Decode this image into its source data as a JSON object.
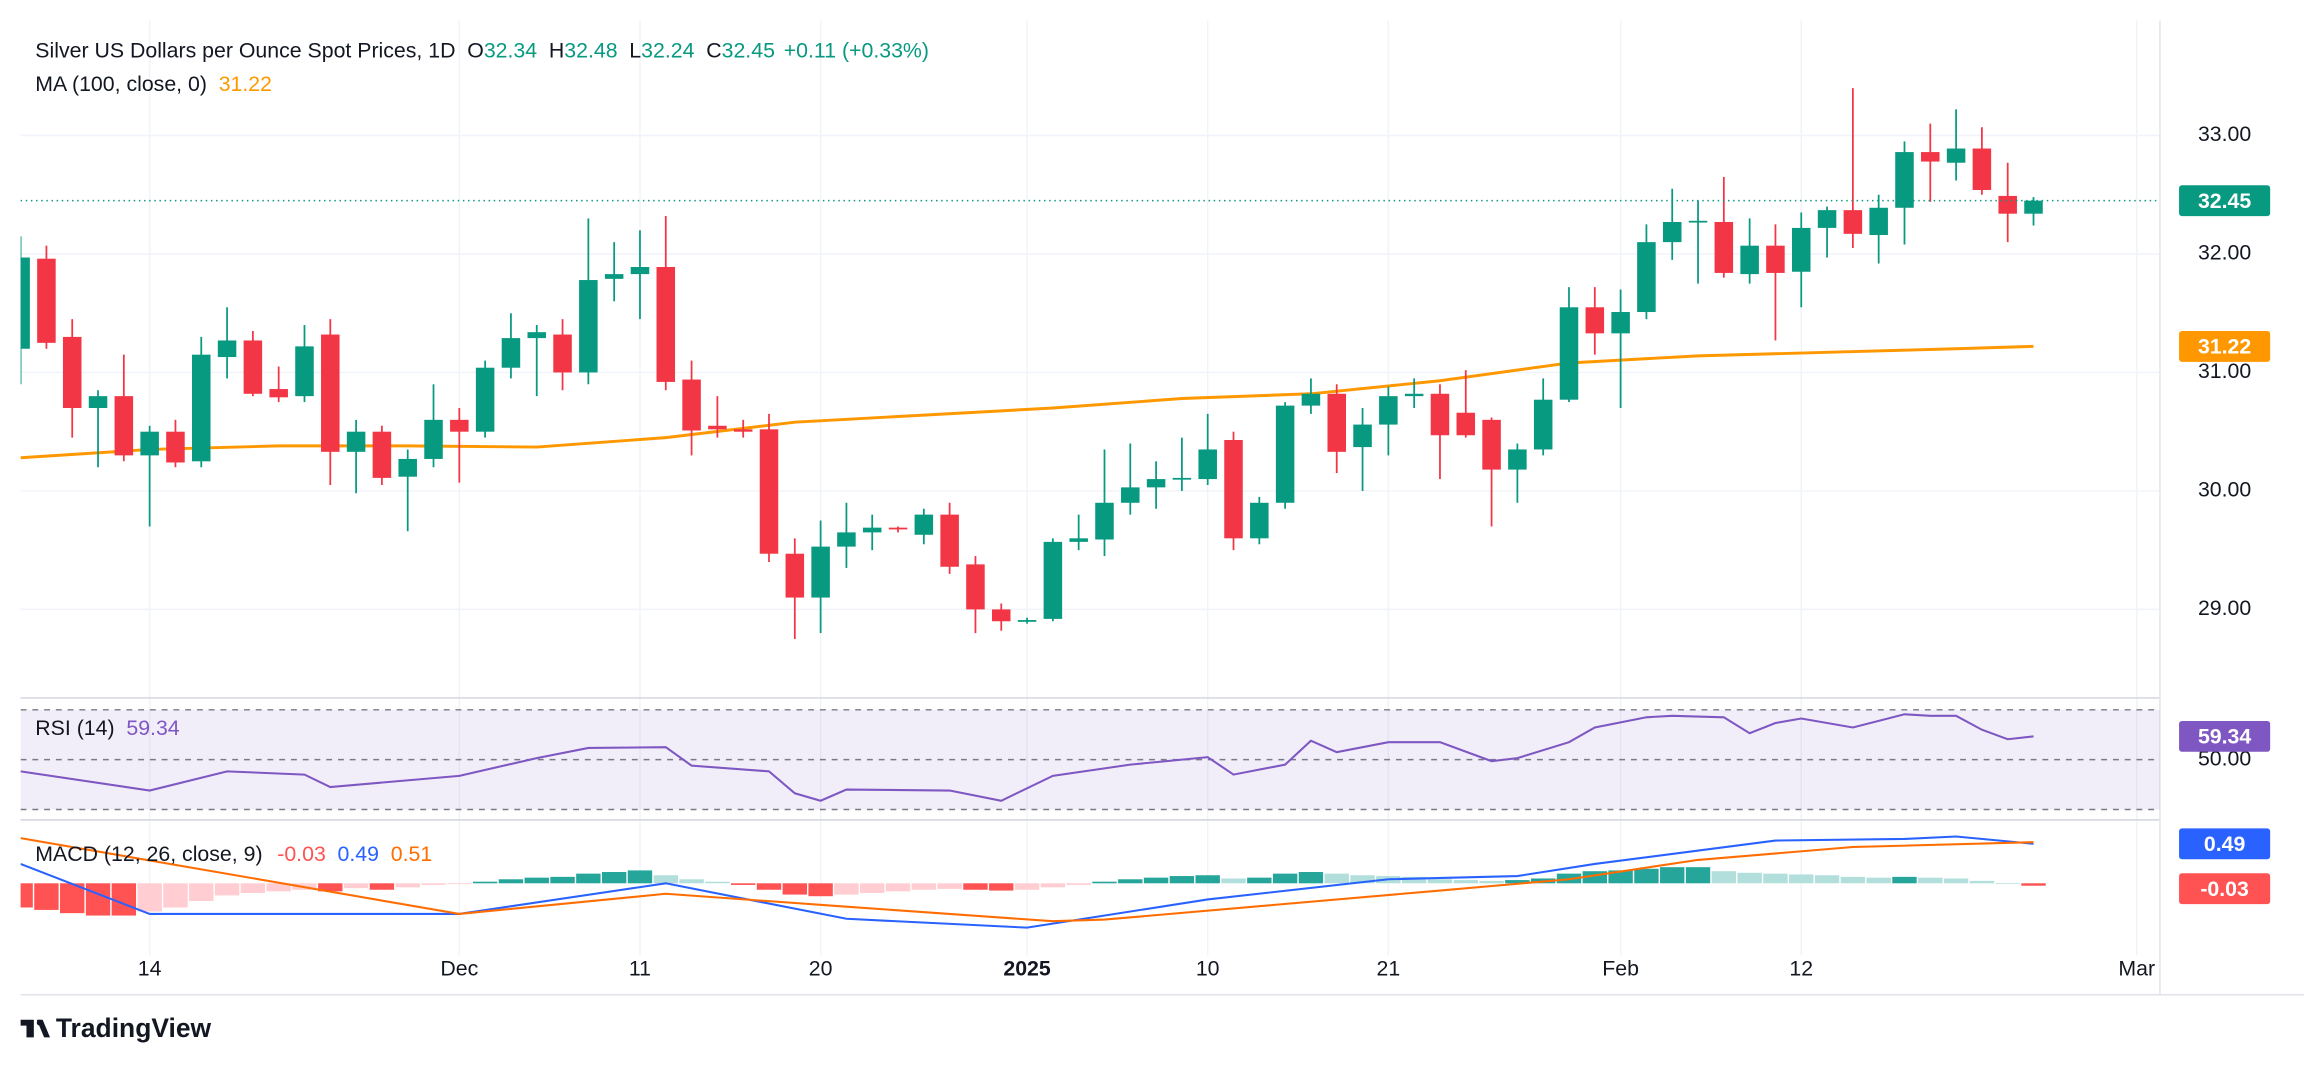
{
  "chart_data": [
    {
      "type": "candlestick",
      "title": "Silver US Dollars per Ounce Spot Prices, 1D",
      "ohlc_labels": [
        "O",
        "H",
        "L",
        "C"
      ],
      "change": "+0.11 (+0.33%)",
      "up_color": "#089981",
      "down_color": "#f23645",
      "xlim": [
        0,
        82.9
      ],
      "xticks": [
        {
          "value": 5,
          "label": "14"
        },
        {
          "value": 17,
          "label": "Dec"
        },
        {
          "value": 24,
          "label": "11"
        },
        {
          "value": 31,
          "label": "20"
        },
        {
          "value": 39,
          "label": "2025"
        },
        {
          "value": 46,
          "label": "10"
        },
        {
          "value": 53,
          "label": "21"
        },
        {
          "value": 62,
          "label": "Feb"
        },
        {
          "value": 69,
          "label": "12"
        },
        {
          "value": 82,
          "label": "Mar"
        }
      ],
      "ylim": [
        28.29,
        33.97
      ],
      "yticks": [
        {
          "value": 29,
          "label": "29.00"
        },
        {
          "value": 30,
          "label": "30.00"
        },
        {
          "value": 31,
          "label": "31.00"
        },
        {
          "value": 32,
          "label": "32.00"
        },
        {
          "value": 33,
          "label": "33.00"
        }
      ],
      "grid": true,
      "candles": {
        "open": [
          31.2,
          31.96,
          31.3,
          30.7,
          30.8,
          30.3,
          30.5,
          30.25,
          31.13,
          31.27,
          30.86,
          30.8,
          31.32,
          30.33,
          30.5,
          30.12,
          30.27,
          30.6,
          30.5,
          31.04,
          31.29,
          31.32,
          31.0,
          31.79,
          31.83,
          31.89,
          30.94,
          30.55,
          30.52,
          30.52,
          29.47,
          29.1,
          29.53,
          29.65,
          29.69,
          29.63,
          29.8,
          29.38,
          29.0,
          28.9,
          28.92,
          29.57,
          29.59,
          29.9,
          30.03,
          30.1,
          30.1,
          30.43,
          29.6,
          29.9,
          30.72,
          30.82,
          30.37,
          30.56,
          30.8,
          30.82,
          30.66,
          30.6,
          30.18,
          30.35,
          30.77,
          31.55,
          31.33,
          31.51,
          32.1,
          32.27,
          32.27,
          31.83,
          32.07,
          31.85,
          32.22,
          32.37,
          32.16,
          32.39,
          32.86,
          32.77,
          32.89,
          32.49,
          32.34
        ],
        "high": [
          32.15,
          32.07,
          31.45,
          30.85,
          31.15,
          30.55,
          30.6,
          31.3,
          31.55,
          31.35,
          31.05,
          31.4,
          31.45,
          30.6,
          30.55,
          30.35,
          30.9,
          30.7,
          31.1,
          31.5,
          31.4,
          31.45,
          32.3,
          32.1,
          32.2,
          32.32,
          31.1,
          30.8,
          30.6,
          30.65,
          29.6,
          29.75,
          29.9,
          29.8,
          29.7,
          29.85,
          29.9,
          29.45,
          29.05,
          28.93,
          29.6,
          29.8,
          30.35,
          30.4,
          30.25,
          30.45,
          30.65,
          30.5,
          29.95,
          30.75,
          30.95,
          30.9,
          30.7,
          30.88,
          30.95,
          30.9,
          31.02,
          30.62,
          30.4,
          30.95,
          31.72,
          31.72,
          31.7,
          32.25,
          32.55,
          32.45,
          32.65,
          32.3,
          32.25,
          32.35,
          32.4,
          33.4,
          32.5,
          32.95,
          33.1,
          33.22,
          33.07,
          32.77,
          32.48
        ],
        "low": [
          30.9,
          31.2,
          30.45,
          30.2,
          30.25,
          29.7,
          30.2,
          30.2,
          30.95,
          30.8,
          30.75,
          30.75,
          30.05,
          29.98,
          30.05,
          29.66,
          30.2,
          30.07,
          30.45,
          30.95,
          30.8,
          30.85,
          30.9,
          31.6,
          31.45,
          30.85,
          30.3,
          30.45,
          30.45,
          29.4,
          28.75,
          28.8,
          29.35,
          29.5,
          29.65,
          29.55,
          29.3,
          28.8,
          28.82,
          28.88,
          28.9,
          29.5,
          29.45,
          29.8,
          29.85,
          30.0,
          30.05,
          29.5,
          29.55,
          29.85,
          30.65,
          30.15,
          30.0,
          30.3,
          30.7,
          30.1,
          30.45,
          29.7,
          29.9,
          30.3,
          30.75,
          31.15,
          30.7,
          31.45,
          31.95,
          31.75,
          31.8,
          31.75,
          31.27,
          31.55,
          31.97,
          32.05,
          31.92,
          32.08,
          32.44,
          32.62,
          32.5,
          32.1,
          32.24
        ],
        "close": [
          31.97,
          31.25,
          30.7,
          30.8,
          30.3,
          30.5,
          30.24,
          31.15,
          31.27,
          30.82,
          30.79,
          31.22,
          30.33,
          30.5,
          30.11,
          30.27,
          30.6,
          30.5,
          31.04,
          31.29,
          31.34,
          31.0,
          31.78,
          31.83,
          31.89,
          30.92,
          30.51,
          30.52,
          30.5,
          29.47,
          29.1,
          29.53,
          29.65,
          29.69,
          29.68,
          29.8,
          29.36,
          29.0,
          28.9,
          28.91,
          29.57,
          29.6,
          29.9,
          30.03,
          30.1,
          30.11,
          30.35,
          29.6,
          29.9,
          30.72,
          30.82,
          30.33,
          30.56,
          30.8,
          30.82,
          30.47,
          30.47,
          30.18,
          30.35,
          30.77,
          31.55,
          31.33,
          31.51,
          32.1,
          32.27,
          32.28,
          31.84,
          32.07,
          31.84,
          32.22,
          32.37,
          32.17,
          32.39,
          32.86,
          32.78,
          32.89,
          32.54,
          32.34,
          32.45
        ]
      },
      "ma": {
        "name": "MA (100, close, 0)",
        "color": "#ff9800",
        "x": [
          0,
          5,
          10,
          15,
          20,
          25,
          30,
          35,
          40,
          45,
          50,
          55,
          60,
          65,
          70,
          75,
          78
        ],
        "values": [
          30.28,
          30.35,
          30.38,
          30.38,
          30.37,
          30.45,
          30.58,
          30.64,
          30.7,
          30.78,
          30.82,
          30.93,
          31.08,
          31.14,
          31.17,
          31.2,
          31.22
        ]
      }
    },
    {
      "type": "line",
      "name": "RSI (14)",
      "color": "#7e57c2",
      "ylim": [
        27,
        73
      ],
      "levels": [
        70,
        50,
        30
      ],
      "yticks": [
        {
          "value": 50,
          "label": "50.00"
        }
      ],
      "x": [
        0,
        5,
        8,
        11,
        12,
        17,
        20,
        22,
        25,
        26,
        29,
        30,
        31,
        32,
        36,
        38,
        40,
        43,
        46,
        47,
        49,
        50,
        51,
        53,
        55,
        57,
        58,
        60,
        61,
        63,
        64,
        66,
        67,
        68,
        69,
        71,
        73,
        74,
        75,
        76,
        77,
        78
      ],
      "values": [
        45.3,
        37.6,
        45.3,
        44,
        39,
        43.5,
        50.6,
        54.7,
        55,
        47.6,
        45.3,
        36.5,
        33.5,
        38,
        37.6,
        33.5,
        43.5,
        48,
        51,
        44,
        48,
        57.6,
        53,
        57,
        57,
        49.4,
        50.6,
        57,
        62.9,
        67,
        67.6,
        67,
        60.6,
        64.7,
        66.5,
        62.9,
        68.2,
        67.6,
        67.6,
        62,
        58.2,
        59.34
      ]
    },
    {
      "type": "macd",
      "name": "MACD (12, 26, close, 9)",
      "ylim": [
        -0.89,
        0.75
      ],
      "histogram": {
        "colors": [
          "#26a69a",
          "#b2dfdb",
          "#ff5252",
          "#ffcdd2"
        ],
        "values": [
          -0.3,
          -0.33,
          -0.37,
          -0.4,
          -0.4,
          -0.35,
          -0.3,
          -0.22,
          -0.15,
          -0.12,
          -0.1,
          -0.08,
          -0.1,
          -0.06,
          -0.08,
          -0.05,
          -0.02,
          -0.01,
          0.02,
          0.05,
          0.07,
          0.08,
          0.12,
          0.14,
          0.16,
          0.1,
          0.05,
          0.02,
          -0.02,
          -0.08,
          -0.14,
          -0.16,
          -0.14,
          -0.12,
          -0.1,
          -0.08,
          -0.07,
          -0.08,
          -0.09,
          -0.08,
          -0.05,
          -0.02,
          0.02,
          0.05,
          0.07,
          0.09,
          0.1,
          0.06,
          0.07,
          0.12,
          0.14,
          0.12,
          0.1,
          0.09,
          0.08,
          0.05,
          0.04,
          0.03,
          0.04,
          0.06,
          0.12,
          0.15,
          0.16,
          0.18,
          0.2,
          0.2,
          0.15,
          0.13,
          0.12,
          0.11,
          0.1,
          0.08,
          0.07,
          0.08,
          0.07,
          0.06,
          0.03,
          0.0,
          -0.03
        ]
      },
      "macd": {
        "color": "#2962ff",
        "x": [
          0,
          5,
          17,
          25,
          32,
          39,
          46,
          53,
          58,
          61,
          68,
          73,
          75,
          78
        ],
        "values": [
          0.24,
          -0.38,
          -0.38,
          0.0,
          -0.44,
          -0.55,
          -0.2,
          0.05,
          0.09,
          0.24,
          0.53,
          0.55,
          0.58,
          0.49
        ]
      },
      "signal": {
        "color": "#ff6d00",
        "x": [
          0,
          17,
          25,
          32,
          40,
          42,
          55,
          60,
          65,
          71,
          78
        ],
        "values": [
          0.56,
          -0.38,
          -0.13,
          -0.29,
          -0.47,
          -0.45,
          -0.09,
          0.05,
          0.29,
          0.45,
          0.51
        ]
      }
    }
  ],
  "footer": {
    "brand": "TradingView"
  }
}
